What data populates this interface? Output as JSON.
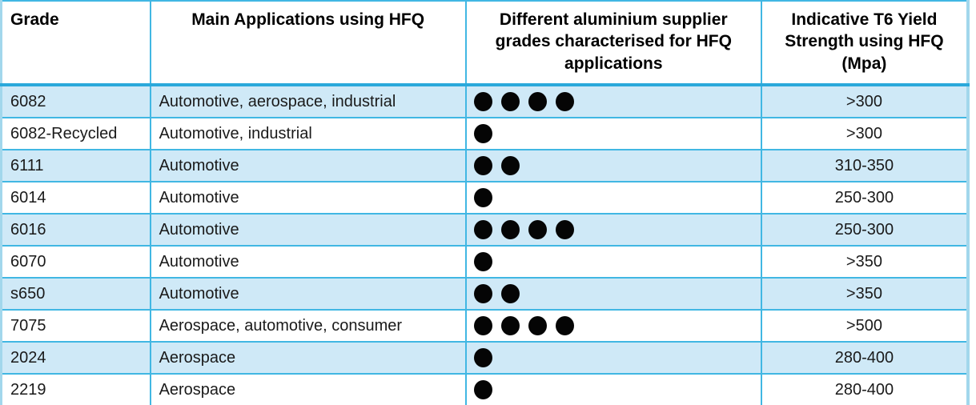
{
  "table": {
    "columns": [
      {
        "label": "Grade",
        "align": "left"
      },
      {
        "label": "Main Applications using HFQ",
        "align": "center"
      },
      {
        "label": "Different aluminium supplier grades characterised for HFQ applications",
        "align": "center"
      },
      {
        "label": "Indicative T6 Yield Strength using HFQ (Mpa)",
        "align": "center"
      }
    ],
    "rows": [
      {
        "grade": "6082",
        "applications": "Automotive, aerospace, industrial",
        "supplier_grade_dots": 4,
        "yield_strength": ">300"
      },
      {
        "grade": "6082-Recycled",
        "applications": "Automotive, industrial",
        "supplier_grade_dots": 1,
        "yield_strength": ">300"
      },
      {
        "grade": "6111",
        "applications": "Automotive",
        "supplier_grade_dots": 2,
        "yield_strength": "310-350"
      },
      {
        "grade": "6014",
        "applications": "Automotive",
        "supplier_grade_dots": 1,
        "yield_strength": "250-300"
      },
      {
        "grade": "6016",
        "applications": "Automotive",
        "supplier_grade_dots": 4,
        "yield_strength": "250-300"
      },
      {
        "grade": "6070",
        "applications": "Automotive",
        "supplier_grade_dots": 1,
        "yield_strength": ">350"
      },
      {
        "grade": "s650",
        "applications": "Automotive",
        "supplier_grade_dots": 2,
        "yield_strength": ">350"
      },
      {
        "grade": "7075",
        "applications": "Aerospace, automotive, consumer",
        "supplier_grade_dots": 4,
        "yield_strength": ">500"
      },
      {
        "grade": "2024",
        "applications": "Aerospace",
        "supplier_grade_dots": 1,
        "yield_strength": "280-400"
      },
      {
        "grade": "2219",
        "applications": "Aerospace",
        "supplier_grade_dots": 1,
        "yield_strength": "280-400"
      }
    ]
  },
  "colors": {
    "row_stripe": "#cfe9f7",
    "grid_border": "#41b7e3",
    "header_divider": "#2ba9db",
    "outer_edge": "#a2d7ec",
    "dot": "#050505",
    "text": "#1a1a1a"
  }
}
